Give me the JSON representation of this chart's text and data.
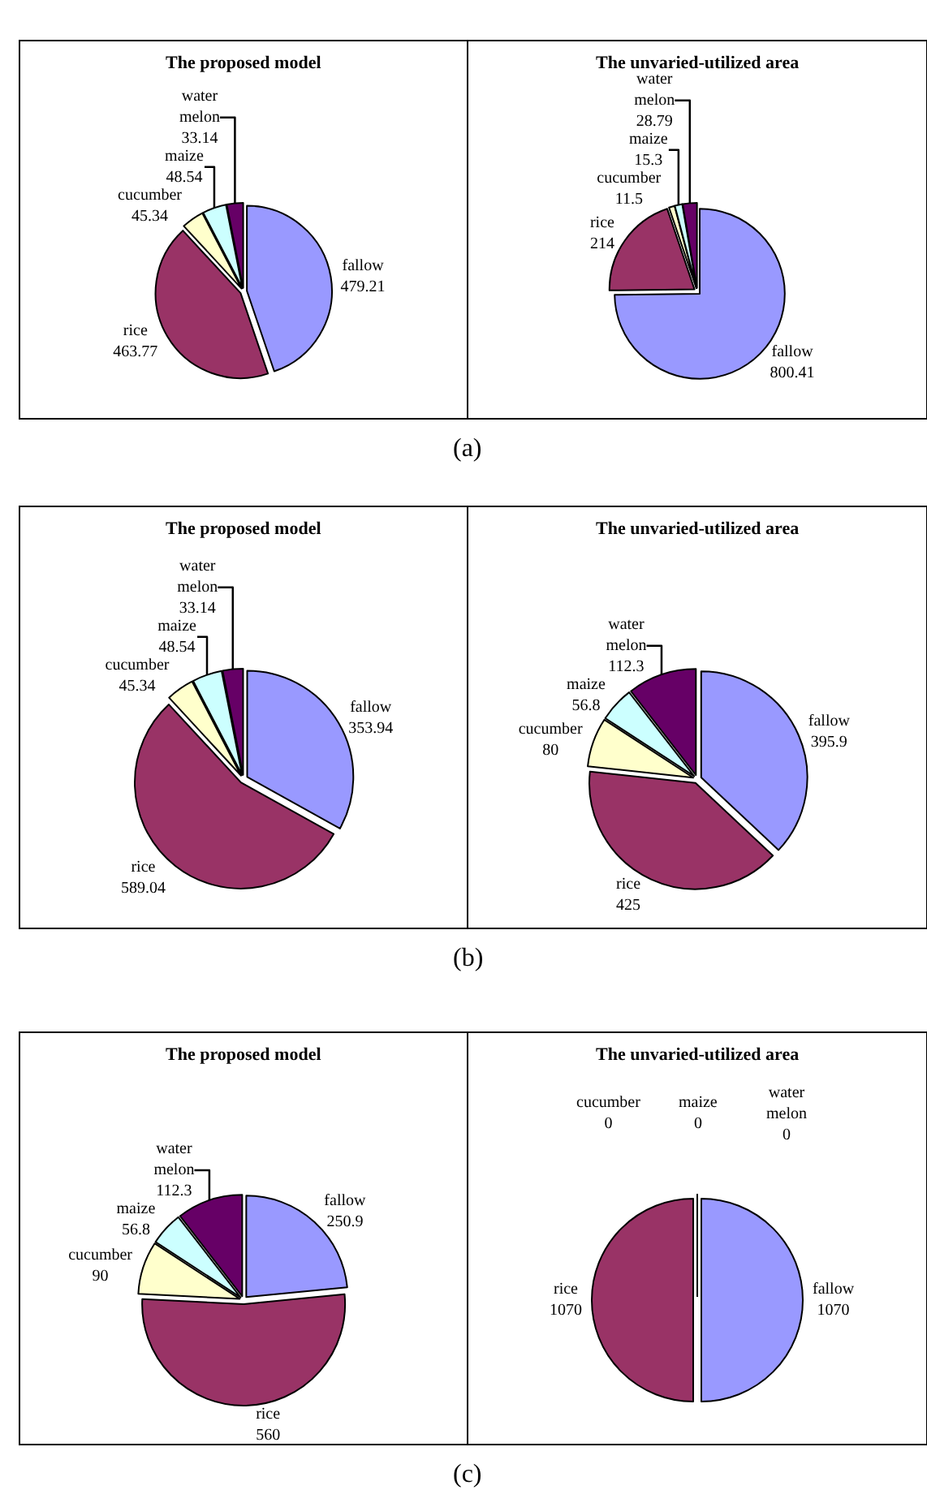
{
  "chart_data": [
    {
      "type": "pie",
      "title": "The proposed model",
      "categories": [
        "fallow",
        "rice",
        "cucumber",
        "maize",
        "water melon"
      ],
      "values": [
        479.21,
        463.77,
        45.34,
        48.54,
        33.14
      ],
      "colors": [
        "#9999ff",
        "#993366",
        "#ffffcc",
        "#ccffff",
        "#660066"
      ],
      "value_labels": [
        "479.21",
        "463.77",
        "45.34",
        "48.54",
        "33.14"
      ],
      "annotations": [
        "(a)"
      ]
    },
    {
      "type": "pie",
      "title": "The unvaried-utilized area",
      "categories": [
        "fallow",
        "rice",
        "cucumber",
        "maize",
        "water melon"
      ],
      "values": [
        800.41,
        214,
        11.5,
        15.3,
        28.79
      ],
      "colors": [
        "#9999ff",
        "#993366",
        "#ffffcc",
        "#ccffff",
        "#660066"
      ],
      "value_labels": [
        "800.41",
        "214",
        "11.5",
        "15.3",
        "28.79"
      ]
    },
    {
      "type": "pie",
      "title": "The proposed model",
      "categories": [
        "fallow",
        "rice",
        "cucumber",
        "maize",
        "water melon"
      ],
      "values": [
        353.94,
        589.04,
        45.34,
        48.54,
        33.14
      ],
      "colors": [
        "#9999ff",
        "#993366",
        "#ffffcc",
        "#ccffff",
        "#660066"
      ],
      "value_labels": [
        "353.94",
        "589.04",
        "45.34",
        "48.54",
        "33.14"
      ],
      "annotations": [
        "(b)"
      ]
    },
    {
      "type": "pie",
      "title": "The unvaried-utilized area",
      "categories": [
        "fallow",
        "rice",
        "cucumber",
        "maize",
        "water melon"
      ],
      "values": [
        395.9,
        425,
        80,
        56.8,
        112.3
      ],
      "colors": [
        "#9999ff",
        "#993366",
        "#ffffcc",
        "#ccffff",
        "#660066"
      ],
      "value_labels": [
        "395.9",
        "425",
        "80",
        "56.8",
        "112.3"
      ]
    },
    {
      "type": "pie",
      "title": "The proposed model",
      "categories": [
        "fallow",
        "rice",
        "cucumber",
        "maize",
        "water melon"
      ],
      "values": [
        250.9,
        560,
        90,
        56.8,
        112.3
      ],
      "colors": [
        "#9999ff",
        "#993366",
        "#ffffcc",
        "#ccffff",
        "#660066"
      ],
      "value_labels": [
        "250.9",
        "560",
        "90",
        "56.8",
        "112.3"
      ],
      "annotations": [
        "(c)"
      ]
    },
    {
      "type": "pie",
      "title": "The unvaried-utilized area",
      "categories": [
        "fallow",
        "rice",
        "cucumber",
        "maize",
        "water melon"
      ],
      "values": [
        1070,
        1070,
        0,
        0,
        0
      ],
      "colors": [
        "#9999ff",
        "#993366",
        "#ffffcc",
        "#ccffff",
        "#660066"
      ],
      "value_labels": [
        "1070",
        "1070",
        "0",
        "0",
        "0"
      ]
    }
  ]
}
